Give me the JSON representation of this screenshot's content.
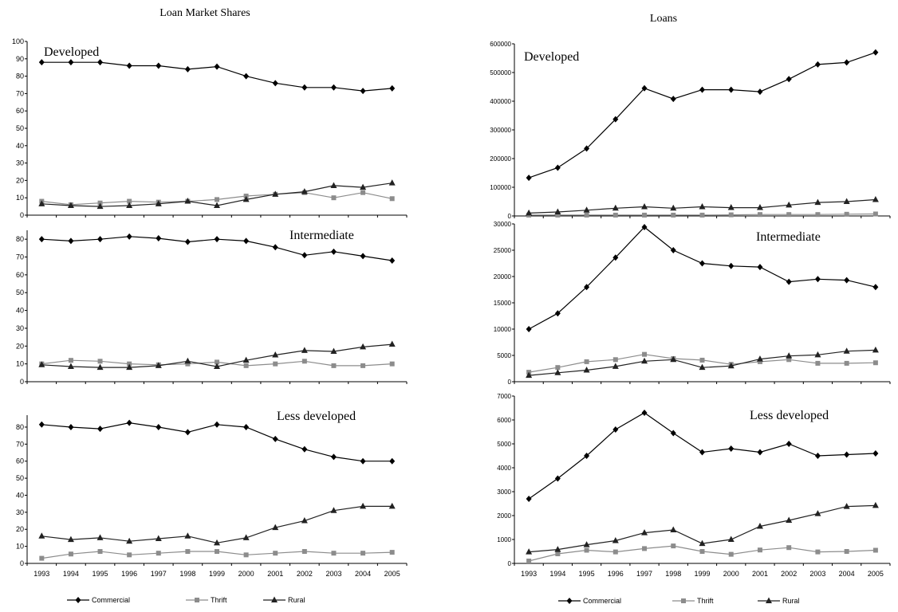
{
  "titles": {
    "left": "Loan Market Shares",
    "right": "Loans"
  },
  "legend": [
    {
      "name": "Commercial",
      "marker": "diamond"
    },
    {
      "name": "Thrift",
      "marker": "square"
    },
    {
      "name": "Rural",
      "marker": "triangle"
    }
  ],
  "colors": {
    "commercial": "#000000",
    "thrift": "#8c8c8c",
    "rural": "#222222",
    "axis": "#000000"
  },
  "chart_data": [
    {
      "type": "line",
      "panel": "left",
      "title": "Developed",
      "x": [
        "1993",
        "1994",
        "1995",
        "1996",
        "1997",
        "1998",
        "1999",
        "2000",
        "2001",
        "2002",
        "2003",
        "2004",
        "2005"
      ],
      "ylim": [
        0,
        100
      ],
      "yticks": [
        0,
        10,
        20,
        30,
        40,
        50,
        60,
        70,
        80,
        90,
        100
      ],
      "series": [
        {
          "name": "Commercial",
          "values": [
            88,
            88,
            88,
            86,
            86,
            84,
            85.5,
            80,
            76,
            73.5,
            73.5,
            71.5,
            73
          ]
        },
        {
          "name": "Thrift",
          "values": [
            8,
            6,
            7,
            8,
            7.5,
            8,
            9,
            11,
            12,
            13,
            10,
            13,
            9.5
          ]
        },
        {
          "name": "Rural",
          "values": [
            6.5,
            5.5,
            5,
            5.5,
            6.5,
            8,
            5.5,
            9,
            12,
            13.5,
            17,
            16,
            18.5
          ]
        }
      ]
    },
    {
      "type": "line",
      "panel": "left",
      "title": "Intermediate",
      "x": [
        "1993",
        "1994",
        "1995",
        "1996",
        "1997",
        "1998",
        "1999",
        "2000",
        "2001",
        "2002",
        "2003",
        "2004",
        "2005"
      ],
      "ylim": [
        0,
        85
      ],
      "yticks": [
        0,
        10,
        20,
        30,
        40,
        50,
        60,
        70,
        80
      ],
      "series": [
        {
          "name": "Commercial",
          "values": [
            80,
            79,
            80,
            81.5,
            80.5,
            78.5,
            80,
            79,
            75.5,
            71,
            73,
            70.5,
            68
          ]
        },
        {
          "name": "Thrift",
          "values": [
            10,
            12,
            11.5,
            10,
            9.5,
            10,
            11,
            9,
            10,
            11.5,
            9,
            9,
            10
          ]
        },
        {
          "name": "Rural",
          "values": [
            9.5,
            8.5,
            8,
            8,
            9,
            11.5,
            8.5,
            12,
            15,
            17.5,
            17,
            19.5,
            21
          ]
        }
      ]
    },
    {
      "type": "line",
      "panel": "left",
      "title": "Less developed",
      "x": [
        "1993",
        "1994",
        "1995",
        "1996",
        "1997",
        "1998",
        "1999",
        "2000",
        "2001",
        "2002",
        "2003",
        "2004",
        "2005"
      ],
      "ylim": [
        0,
        87
      ],
      "yticks": [
        0,
        10,
        20,
        30,
        40,
        50,
        60,
        70,
        80
      ],
      "series": [
        {
          "name": "Commercial",
          "values": [
            81.5,
            80,
            79,
            82.5,
            80,
            77,
            81.5,
            80,
            73,
            67,
            62.5,
            60,
            60
          ]
        },
        {
          "name": "Thrift",
          "values": [
            3,
            5.5,
            7,
            5,
            6,
            7,
            7,
            5,
            6,
            7,
            6,
            6,
            6.5
          ]
        },
        {
          "name": "Rural",
          "values": [
            16,
            14,
            15,
            13,
            14.5,
            16,
            12,
            15,
            21,
            25,
            31,
            33.5,
            33.5
          ]
        }
      ]
    },
    {
      "type": "line",
      "panel": "right",
      "title": "Developed",
      "x": [
        "1993",
        "1994",
        "1995",
        "1996",
        "1997",
        "1998",
        "1999",
        "2000",
        "2001",
        "2002",
        "2003",
        "2004",
        "2005"
      ],
      "ylim": [
        0,
        600000
      ],
      "yticks": [
        0,
        100000,
        200000,
        300000,
        400000,
        500000,
        600000
      ],
      "series": [
        {
          "name": "Commercial",
          "values": [
            133000,
            168000,
            235000,
            337000,
            445000,
            408000,
            440000,
            440000,
            433000,
            477000,
            528000,
            535000,
            570000
          ]
        },
        {
          "name": "Thrift",
          "values": [
            3000,
            3000,
            3000,
            3000,
            3000,
            3000,
            3000,
            4000,
            5000,
            5000,
            5000,
            6000,
            7000
          ]
        },
        {
          "name": "Rural",
          "values": [
            10000,
            14000,
            20000,
            27000,
            32000,
            27000,
            32000,
            29000,
            29000,
            38000,
            47000,
            50000,
            57000
          ]
        }
      ]
    },
    {
      "type": "line",
      "panel": "right",
      "title": "Intermediate",
      "x": [
        "1993",
        "1994",
        "1995",
        "1996",
        "1997",
        "1998",
        "1999",
        "2000",
        "2001",
        "2002",
        "2003",
        "2004",
        "2005"
      ],
      "ylim": [
        0,
        30000
      ],
      "yticks": [
        0,
        5000,
        10000,
        15000,
        20000,
        25000,
        30000
      ],
      "series": [
        {
          "name": "Commercial",
          "values": [
            10000,
            13000,
            18000,
            23600,
            29400,
            25000,
            22500,
            22000,
            21800,
            19000,
            19500,
            19300,
            18000
          ]
        },
        {
          "name": "Thrift",
          "values": [
            1800,
            2700,
            3800,
            4200,
            5200,
            4400,
            4100,
            3300,
            3800,
            4200,
            3500,
            3500,
            3600
          ]
        },
        {
          "name": "Rural",
          "values": [
            1200,
            1700,
            2200,
            2900,
            3900,
            4200,
            2700,
            3000,
            4300,
            4900,
            5100,
            5800,
            6000
          ]
        }
      ]
    },
    {
      "type": "line",
      "panel": "right",
      "title": "Less developed",
      "x": [
        "1993",
        "1994",
        "1995",
        "1996",
        "1997",
        "1998",
        "1999",
        "2000",
        "2001",
        "2002",
        "2003",
        "2004",
        "2005"
      ],
      "ylim": [
        0,
        7000
      ],
      "yticks": [
        0,
        1000,
        2000,
        3000,
        4000,
        5000,
        6000,
        7000
      ],
      "series": [
        {
          "name": "Commercial",
          "values": [
            2700,
            3550,
            4500,
            5600,
            6300,
            5450,
            4650,
            4800,
            4650,
            5000,
            4500,
            4550,
            4600
          ]
        },
        {
          "name": "Thrift",
          "values": [
            100,
            400,
            550,
            480,
            620,
            730,
            500,
            380,
            560,
            660,
            480,
            500,
            550
          ]
        },
        {
          "name": "Rural",
          "values": [
            480,
            580,
            780,
            950,
            1280,
            1400,
            830,
            1000,
            1550,
            1800,
            2080,
            2380,
            2420
          ]
        }
      ]
    }
  ]
}
